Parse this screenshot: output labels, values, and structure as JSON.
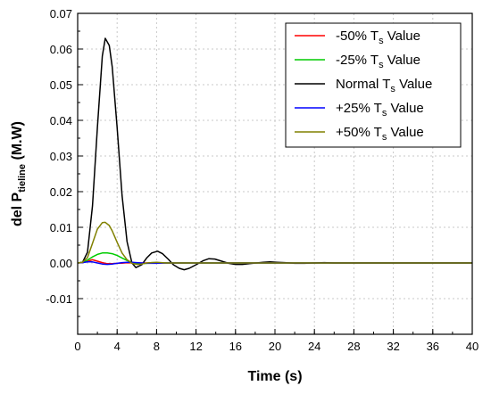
{
  "chart_data": {
    "type": "line",
    "xlabel": "Time (s)",
    "ylabel": {
      "main": "del P",
      "sub": "tieline",
      "unit": " (M.W)"
    },
    "xlim": [
      0,
      40
    ],
    "ylim": [
      -0.02,
      0.07
    ],
    "x_ticks": [
      "0",
      "4",
      "8",
      "12",
      "16",
      "20",
      "24",
      "28",
      "32",
      "36",
      "40"
    ],
    "y_ticks": [
      "0.07",
      "0.06",
      "0.05",
      "0.04",
      "0.03",
      "0.02",
      "0.01",
      "0.00",
      "-0.01"
    ],
    "grid": true,
    "legend_position": "top-right",
    "series": [
      {
        "name": "-50% T_s Value",
        "legend": {
          "pre": "-50% T",
          "sub": "s",
          "post": " Value"
        },
        "color": "#ff0000",
        "x": [
          0,
          0.5,
          1.0,
          1.5,
          2.0,
          2.5,
          3.0,
          3.5,
          4.0,
          4.5,
          5.0,
          6.0,
          40
        ],
        "y": [
          0,
          0.0001,
          0.0005,
          0.0009,
          0.0005,
          0.0001,
          -0.0002,
          -0.0002,
          -0.0001,
          -5e-05,
          5e-05,
          0,
          0
        ]
      },
      {
        "name": "-25% T_s Value",
        "legend": {
          "pre": "-25% T",
          "sub": "s",
          "post": " Value"
        },
        "color": "#00cc00",
        "x": [
          0,
          0.5,
          1.0,
          1.5,
          2.0,
          2.5,
          3.0,
          3.5,
          4.0,
          4.5,
          5.0,
          5.5,
          6.0,
          6.5,
          7.0,
          7.5,
          8.0,
          9.0,
          40
        ],
        "y": [
          0,
          0.0002,
          0.0008,
          0.0017,
          0.0024,
          0.0028,
          0.0028,
          0.0026,
          0.0021,
          0.0014,
          0.0007,
          0.0002,
          -0.0001,
          -0.0002,
          -0.0001,
          0.0001,
          0.0001,
          0,
          0
        ]
      },
      {
        "name": "Normal T_s Value",
        "legend": {
          "pre": "Normal  T",
          "sub": "s",
          "post": " Value"
        },
        "color": "#000000",
        "x": [
          0,
          0.5,
          1.0,
          1.5,
          2.0,
          2.5,
          2.8,
          3.2,
          3.5,
          4.0,
          4.5,
          5.0,
          5.5,
          5.9,
          6.5,
          7.0,
          7.5,
          8.1,
          8.6,
          9.2,
          9.7,
          10.3,
          10.8,
          11.3,
          12.0,
          12.7,
          13.3,
          13.9,
          14.6,
          15.3,
          16.0,
          16.7,
          17.4,
          18.1,
          18.8,
          19.5,
          20.2,
          21.0,
          22.0,
          23.0,
          24.0,
          25.0,
          26.0,
          40
        ],
        "y": [
          0,
          0.0002,
          0.003,
          0.016,
          0.038,
          0.058,
          0.063,
          0.061,
          0.055,
          0.038,
          0.019,
          0.006,
          0.0,
          -0.0013,
          -0.0005,
          0.0014,
          0.0028,
          0.0033,
          0.0026,
          0.001,
          -0.0005,
          -0.0015,
          -0.0019,
          -0.0015,
          -0.0005,
          0.0006,
          0.0012,
          0.0011,
          0.0005,
          -0.0001,
          -0.0004,
          -0.0004,
          -0.0002,
          0.0,
          0.0002,
          0.0003,
          0.0002,
          0.0001,
          -0.0001,
          -0.0001,
          0.0,
          0.0001,
          0.0,
          0.0
        ]
      },
      {
        "name": "+25% T_s Value",
        "legend": {
          "pre": "+25% T",
          "sub": "s",
          "post": " Value"
        },
        "color": "#0000ff",
        "x": [
          0,
          0.5,
          1.0,
          1.5,
          2.0,
          2.5,
          3.0,
          3.5,
          4.0,
          4.5,
          5.0,
          5.5,
          6.0,
          7.0,
          8.0,
          9.0,
          40
        ],
        "y": [
          0,
          0.0001,
          0.0003,
          0.0003,
          0.0,
          -0.0003,
          -0.0004,
          -0.0003,
          -0.0001,
          0.0001,
          0.0002,
          0.0002,
          0.0001,
          -0.0001,
          -0.0001,
          0,
          0
        ]
      },
      {
        "name": "+50% T_s Value",
        "legend": {
          "pre": "+50% T",
          "sub": "s",
          "post": " Value"
        },
        "color": "#808000",
        "x": [
          0,
          0.5,
          1.0,
          1.5,
          2.0,
          2.5,
          2.8,
          3.2,
          3.5,
          4.0,
          4.5,
          5.0,
          5.5,
          6.0,
          6.5,
          7.0,
          8.0,
          9.0,
          40
        ],
        "y": [
          0,
          0.0002,
          0.0015,
          0.0055,
          0.0095,
          0.0113,
          0.0114,
          0.0105,
          0.009,
          0.0058,
          0.0028,
          0.0009,
          -0.0001,
          -0.0004,
          -0.0003,
          0.0,
          0.0002,
          0.0,
          0
        ]
      }
    ]
  }
}
